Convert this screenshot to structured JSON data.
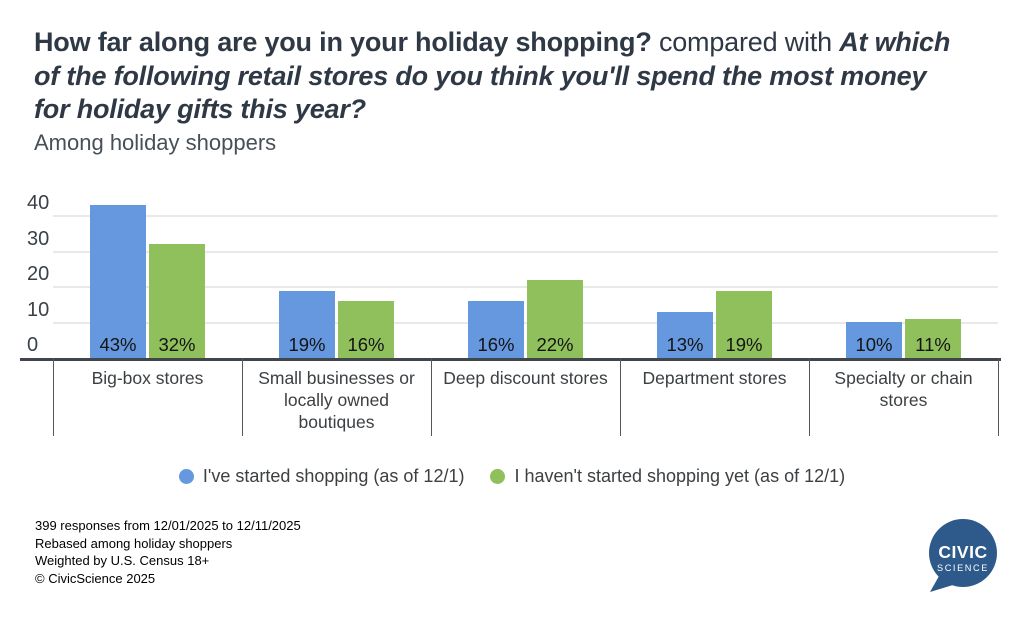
{
  "header": {
    "title_q1": "How far along are you in your holiday shopping?",
    "title_connector": " compared with ",
    "title_q2": "At which of the following retail stores do you think you'll spend the most money for holiday gifts this year?",
    "subtitle": "Among holiday shoppers"
  },
  "chart_data": {
    "type": "bar",
    "title": "How far along are you in your holiday shopping? compared with At which of the following retail stores do you think you'll spend the most money for holiday gifts this year?",
    "subtitle": "Among holiday shoppers",
    "categories": [
      "Big-box stores",
      "Small businesses or locally owned boutiques",
      "Deep discount stores",
      "Department stores",
      "Specialty or chain stores"
    ],
    "series": [
      {
        "name": "I've started shopping (as of 12/1)",
        "color": "#6598de",
        "values": [
          43,
          19,
          16,
          13,
          10
        ]
      },
      {
        "name": "I haven't started shopping yet (as of 12/1)",
        "color": "#8fc05c",
        "values": [
          32,
          16,
          22,
          19,
          11
        ]
      }
    ],
    "value_suffix": "%",
    "ylabel": "",
    "xlabel": "",
    "ylim": [
      0,
      45
    ],
    "yticks": [
      0,
      10,
      20,
      30,
      40
    ],
    "grid": true,
    "legend_position": "bottom"
  },
  "footer": {
    "lines": [
      "399 responses from 12/01/2025 to 12/11/2025",
      "Rebased among holiday shoppers",
      "Weighted by U.S. Census 18+",
      "© CivicScience 2025"
    ]
  },
  "logo": {
    "line1": "CIVIC",
    "line2": "SCIENCE",
    "color": "#2d5a8a"
  }
}
